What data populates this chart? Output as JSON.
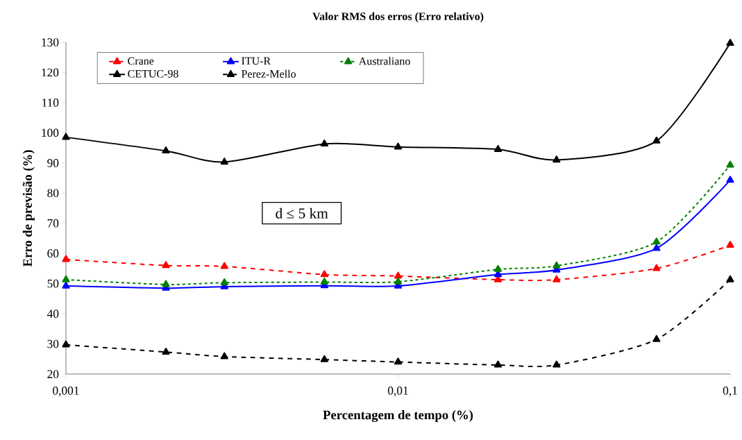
{
  "chart_data": {
    "type": "line",
    "title": "Valor RMS dos erros (Erro relativo)",
    "xlabel": "Percentagem de tempo (%)",
    "ylabel": "Erro de previsão (%)",
    "x": [
      0.001,
      0.002,
      0.003,
      0.006,
      0.01,
      0.02,
      0.03,
      0.06,
      0.1
    ],
    "log": "x",
    "xlim": [
      0.001,
      0.1
    ],
    "xticks": [
      {
        "value": 0.001,
        "label": "0,001"
      },
      {
        "value": 0.01,
        "label": "0,01"
      },
      {
        "value": 0.1,
        "label": "0,1"
      }
    ],
    "ylim": [
      20,
      130
    ],
    "yticks": [
      20,
      30,
      40,
      50,
      60,
      70,
      80,
      90,
      100,
      110,
      120,
      130
    ],
    "grid": false,
    "legend": "top",
    "marker": "triangle",
    "annotations": [
      "d ≤ 5 km"
    ],
    "series": [
      {
        "name": "Crane",
        "color": "#ff0000",
        "line_style": "dashed",
        "values": [
          58,
          56,
          55.7,
          53,
          52.5,
          51.3,
          51.3,
          55,
          62.7
        ]
      },
      {
        "name": "ITU-R",
        "color": "#0000ff",
        "line_style": "solid",
        "values": [
          49.2,
          48.5,
          49,
          49.3,
          49.2,
          53,
          54.5,
          61.7,
          84.3
        ]
      },
      {
        "name": "Australiano",
        "color": "#008000",
        "line_style": "dotted",
        "values": [
          51.3,
          49.7,
          50.3,
          50.5,
          50.6,
          54.7,
          55.9,
          63.8,
          89.3
        ]
      },
      {
        "name": "CETUC-98",
        "color": "#000000",
        "line_style": "solid",
        "values": [
          98.5,
          94,
          90.3,
          96.3,
          95.3,
          94.5,
          91,
          97.3,
          129.7
        ]
      },
      {
        "name": "Perez-Mello",
        "color": "#000000",
        "line_style": "dashed",
        "values": [
          29.7,
          27.3,
          25.8,
          24.8,
          24,
          23,
          23,
          31.5,
          51.3
        ]
      }
    ]
  }
}
